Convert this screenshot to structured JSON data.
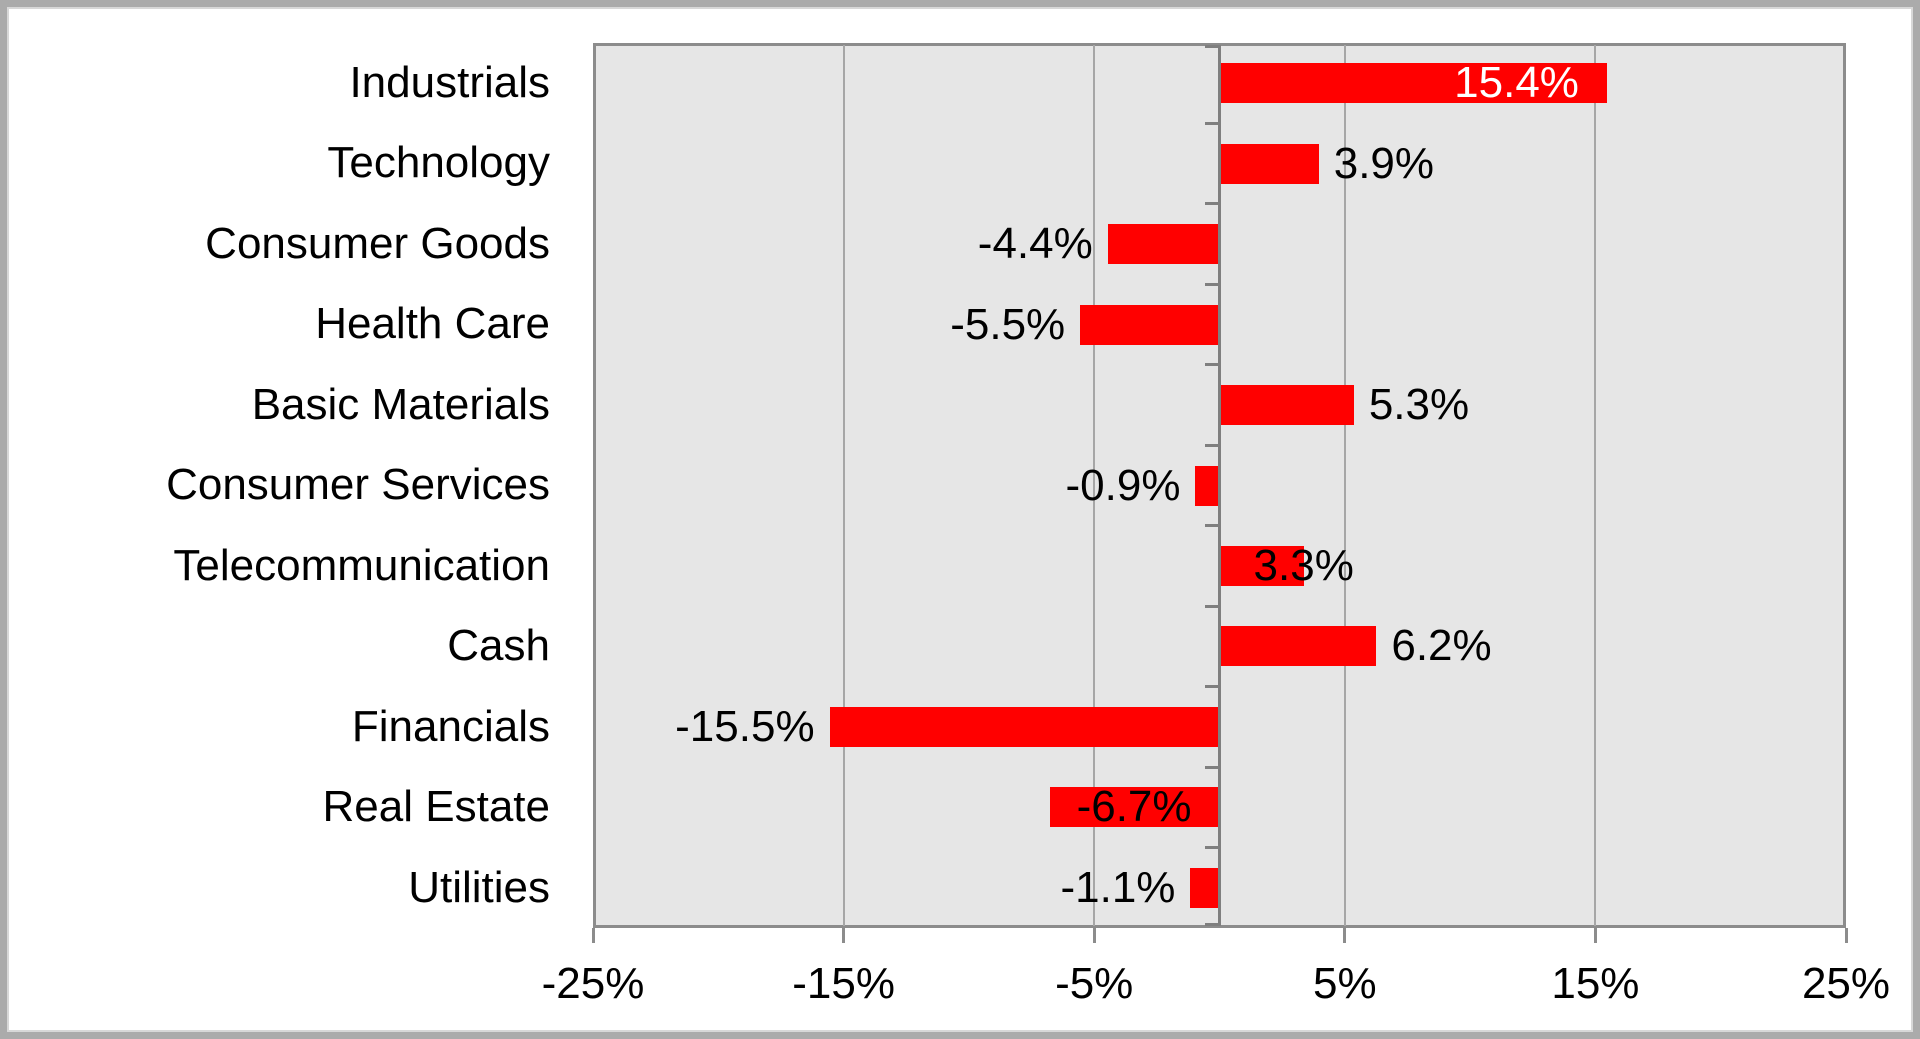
{
  "chart_data": {
    "type": "bar",
    "orientation": "horizontal",
    "title": "",
    "categories": [
      "Industrials",
      "Technology",
      "Consumer Goods",
      "Health Care",
      "Basic Materials",
      "Consumer Services",
      "Telecommunication",
      "Cash",
      "Financials",
      "Real Estate",
      "Utilities"
    ],
    "values": [
      15.4,
      3.9,
      -4.4,
      -5.5,
      5.3,
      -0.9,
      3.3,
      6.2,
      -15.5,
      -6.7,
      -1.1
    ],
    "data_labels": [
      "15.4%",
      "3.9%",
      "-4.4%",
      "-5.5%",
      "5.3%",
      "-0.9%",
      "3.3%",
      "6.2%",
      "-15.5%",
      "-6.7%",
      "-1.1%"
    ],
    "label_placements": [
      "inside-end",
      "outside-end",
      "outside-end",
      "outside-end",
      "outside-end",
      "outside-end",
      "straddle-end",
      "outside-end",
      "outside-end",
      "center",
      "outside-end"
    ],
    "x_axis": {
      "min": -25,
      "max": 25,
      "tick_values": [
        -25,
        -15,
        -5,
        5,
        15,
        25
      ],
      "tick_labels": [
        "-25%",
        "-15%",
        "-5%",
        "5%",
        "15%",
        "25%"
      ],
      "gridline_values": [
        -15,
        -5,
        5,
        15
      ]
    },
    "ylabel": "",
    "xlabel": "",
    "legend": "none",
    "grid": "vertical-major",
    "colors": {
      "bar": "#FF0000",
      "plot_background": "#E6E6E6",
      "gridline": "#A6A6A6",
      "zero_axis": "#7F7F7F",
      "plot_border": "#8C8C8C",
      "text": "#000000",
      "inside_label_text": "#FFFFFF",
      "frame_border": "#ABABAB",
      "page_background": "#FFFFFF"
    }
  }
}
